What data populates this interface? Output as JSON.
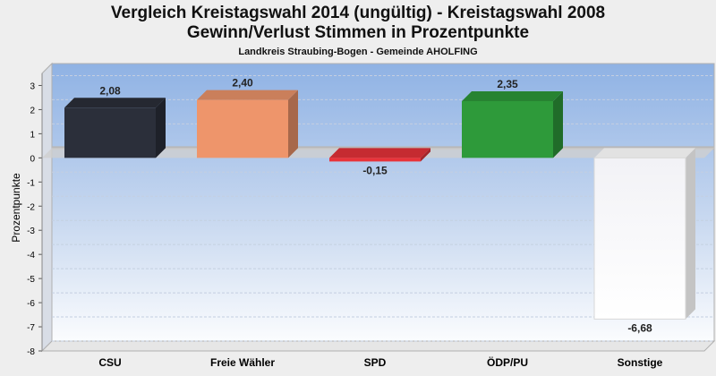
{
  "chart_data": {
    "type": "bar",
    "title_line1": "Vergleich Kreistagswahl 2014 (ungültig) - Kreistagswahl 2008",
    "title_line2": "Gewinn/Verlust Stimmen in Prozentpunkte",
    "subtitle": "Landkreis Straubing-Bogen - Gemeinde AHOLFING",
    "ylabel": "Prozentpunkte",
    "xlabel": "",
    "ylim": [
      -8,
      3.5
    ],
    "yticks": [
      3,
      2,
      1,
      0,
      -1,
      -2,
      -3,
      -4,
      -5,
      -6,
      -7,
      -8
    ],
    "ytick_labels": [
      "3",
      "2",
      "1",
      "0",
      "-1",
      "-2",
      "-3",
      "-4",
      "-5",
      "-6",
      "-7",
      "-8"
    ],
    "categories": [
      "CSU",
      "Freie Wähler",
      "SPD",
      "ÖDP/PU",
      "Sonstige"
    ],
    "values": [
      2.08,
      2.4,
      -0.15,
      2.35,
      -6.68
    ],
    "value_labels": [
      "2,08",
      "2,40",
      "-0,15",
      "2,35",
      "-6,68"
    ],
    "colors": [
      "#2b2f3a",
      "#ee956b",
      "#e8333a",
      "#2e9a3a",
      "#fafafa"
    ],
    "grid": true,
    "legend": "none"
  }
}
